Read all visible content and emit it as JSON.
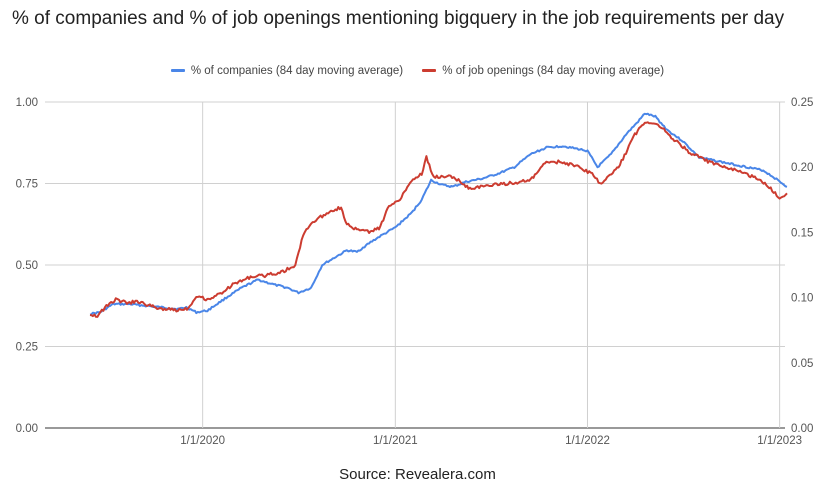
{
  "chart_data": {
    "type": "line",
    "title": "% of companies and % of job openings mentioning bigquery in the job requirements per day",
    "source": "Source: Revealera.com",
    "legend_position": "top",
    "grid": true,
    "x_range": [
      "2019-06-01",
      "2023-01-15"
    ],
    "x_ticks": [
      "1/1/2020",
      "1/1/2021",
      "1/1/2022",
      "1/1/2023"
    ],
    "y_left": {
      "ylim": [
        0,
        1
      ],
      "ticks": [
        "0.00",
        "0.25",
        "0.50",
        "0.75",
        "1.00"
      ]
    },
    "y_right": {
      "ylim": [
        0,
        0.25
      ],
      "ticks": [
        "0.00",
        "0.05",
        "0.10",
        "0.15",
        "0.20",
        "0.25"
      ]
    },
    "series": [
      {
        "name": "% of companies (84 day moving average)",
        "color": "#4a86e8",
        "axis": "left",
        "points": [
          [
            "2019-06-01",
            0.35
          ],
          [
            "2019-06-20",
            0.355
          ],
          [
            "2019-07-15",
            0.38
          ],
          [
            "2019-08-15",
            0.38
          ],
          [
            "2019-09-15",
            0.375
          ],
          [
            "2019-10-15",
            0.37
          ],
          [
            "2019-11-15",
            0.365
          ],
          [
            "2019-12-01",
            0.37
          ],
          [
            "2019-12-20",
            0.355
          ],
          [
            "2020-01-10",
            0.36
          ],
          [
            "2020-02-15",
            0.4
          ],
          [
            "2020-03-15",
            0.43
          ],
          [
            "2020-04-15",
            0.455
          ],
          [
            "2020-05-15",
            0.44
          ],
          [
            "2020-06-10",
            0.43
          ],
          [
            "2020-07-01",
            0.415
          ],
          [
            "2020-07-25",
            0.43
          ],
          [
            "2020-08-15",
            0.5
          ],
          [
            "2020-09-10",
            0.525
          ],
          [
            "2020-10-01",
            0.545
          ],
          [
            "2020-10-20",
            0.54
          ],
          [
            "2020-11-15",
            0.57
          ],
          [
            "2020-12-05",
            0.59
          ],
          [
            "2021-01-01",
            0.615
          ],
          [
            "2021-02-01",
            0.66
          ],
          [
            "2021-02-20",
            0.7
          ],
          [
            "2021-03-10",
            0.76
          ],
          [
            "2021-04-01",
            0.745
          ],
          [
            "2021-04-20",
            0.74
          ],
          [
            "2021-05-15",
            0.755
          ],
          [
            "2021-06-15",
            0.765
          ],
          [
            "2021-07-15",
            0.78
          ],
          [
            "2021-08-15",
            0.8
          ],
          [
            "2021-09-15",
            0.84
          ],
          [
            "2021-10-15",
            0.86
          ],
          [
            "2021-11-15",
            0.865
          ],
          [
            "2021-12-01",
            0.86
          ],
          [
            "2022-01-01",
            0.85
          ],
          [
            "2022-01-20",
            0.8
          ],
          [
            "2022-02-15",
            0.84
          ],
          [
            "2022-03-15",
            0.9
          ],
          [
            "2022-04-10",
            0.945
          ],
          [
            "2022-04-20",
            0.965
          ],
          [
            "2022-05-10",
            0.955
          ],
          [
            "2022-06-01",
            0.915
          ],
          [
            "2022-07-01",
            0.88
          ],
          [
            "2022-08-01",
            0.83
          ],
          [
            "2022-09-01",
            0.82
          ],
          [
            "2022-10-01",
            0.81
          ],
          [
            "2022-11-01",
            0.8
          ],
          [
            "2022-12-01",
            0.79
          ],
          [
            "2022-12-20",
            0.77
          ],
          [
            "2023-01-15",
            0.74
          ]
        ]
      },
      {
        "name": "% of job openings (84 day moving average)",
        "color": "#cc3c30",
        "axis": "right",
        "points": [
          [
            "2019-06-01",
            0.0875
          ],
          [
            "2019-06-15",
            0.086
          ],
          [
            "2019-07-05",
            0.0945
          ],
          [
            "2019-07-20",
            0.0985
          ],
          [
            "2019-08-10",
            0.096
          ],
          [
            "2019-09-01",
            0.097
          ],
          [
            "2019-09-20",
            0.094
          ],
          [
            "2019-10-15",
            0.0915
          ],
          [
            "2019-11-15",
            0.0905
          ],
          [
            "2019-12-05",
            0.092
          ],
          [
            "2019-12-20",
            0.1015
          ],
          [
            "2020-01-10",
            0.0985
          ],
          [
            "2020-02-01",
            0.1025
          ],
          [
            "2020-03-01",
            0.1105
          ],
          [
            "2020-04-01",
            0.116
          ],
          [
            "2020-05-01",
            0.117
          ],
          [
            "2020-06-01",
            0.12
          ],
          [
            "2020-06-25",
            0.1245
          ],
          [
            "2020-07-10",
            0.1485
          ],
          [
            "2020-07-25",
            0.157
          ],
          [
            "2020-08-15",
            0.1625
          ],
          [
            "2020-09-01",
            0.167
          ],
          [
            "2020-09-20",
            0.169
          ],
          [
            "2020-10-01",
            0.156
          ],
          [
            "2020-10-20",
            0.152
          ],
          [
            "2020-11-15",
            0.1505
          ],
          [
            "2020-12-01",
            0.153
          ],
          [
            "2020-12-20",
            0.17
          ],
          [
            "2021-01-10",
            0.176
          ],
          [
            "2021-02-01",
            0.19
          ],
          [
            "2021-02-20",
            0.195
          ],
          [
            "2021-03-01",
            0.2075
          ],
          [
            "2021-03-15",
            0.192
          ],
          [
            "2021-04-10",
            0.1935
          ],
          [
            "2021-05-01",
            0.19
          ],
          [
            "2021-05-20",
            0.184
          ],
          [
            "2021-06-15",
            0.185
          ],
          [
            "2021-07-15",
            0.187
          ],
          [
            "2021-08-15",
            0.188
          ],
          [
            "2021-09-15",
            0.19
          ],
          [
            "2021-10-15",
            0.204
          ],
          [
            "2021-11-15",
            0.204
          ],
          [
            "2021-12-15",
            0.2
          ],
          [
            "2022-01-10",
            0.195
          ],
          [
            "2022-01-25",
            0.187
          ],
          [
            "2022-02-10",
            0.193
          ],
          [
            "2022-03-01",
            0.2
          ],
          [
            "2022-04-01",
            0.225
          ],
          [
            "2022-04-20",
            0.235
          ],
          [
            "2022-05-15",
            0.233
          ],
          [
            "2022-06-15",
            0.221
          ],
          [
            "2022-07-15",
            0.211
          ],
          [
            "2022-08-15",
            0.205
          ],
          [
            "2022-09-15",
            0.2
          ],
          [
            "2022-10-15",
            0.197
          ],
          [
            "2022-11-15",
            0.192
          ],
          [
            "2022-12-15",
            0.184
          ],
          [
            "2023-01-01",
            0.176
          ],
          [
            "2023-01-15",
            0.18
          ]
        ]
      }
    ]
  }
}
